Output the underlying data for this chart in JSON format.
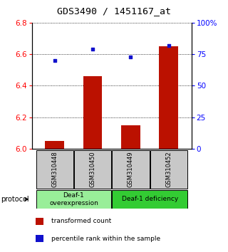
{
  "title": "GDS3490 / 1451167_at",
  "samples": [
    "GSM310448",
    "GSM310450",
    "GSM310449",
    "GSM310452"
  ],
  "transformed_counts": [
    6.05,
    6.46,
    6.15,
    6.65
  ],
  "percentile_ranks": [
    70,
    79,
    73,
    82
  ],
  "ylim_left": [
    6.0,
    6.8
  ],
  "ylim_right": [
    0,
    100
  ],
  "yticks_left": [
    6.0,
    6.2,
    6.4,
    6.6,
    6.8
  ],
  "yticks_right": [
    0,
    25,
    50,
    75,
    100
  ],
  "ytick_labels_right": [
    "0",
    "25",
    "50",
    "75",
    "100%"
  ],
  "bar_color": "#bb1100",
  "dot_color": "#1111cc",
  "bar_width": 0.5,
  "groups": [
    {
      "label": "Deaf-1\noverexpression",
      "samples": [
        0,
        1
      ],
      "color": "#99ee99"
    },
    {
      "label": "Deaf-1 deficiency",
      "samples": [
        2,
        3
      ],
      "color": "#33cc33"
    }
  ],
  "protocol_label": "protocol",
  "legend_bar_label": "transformed count",
  "legend_dot_label": "percentile rank within the sample",
  "plot_bg_color": "#ffffff",
  "sample_box_color": "#c8c8c8",
  "title_fontsize": 9.5,
  "tick_fontsize": 7.5,
  "sample_fontsize": 6,
  "group_fontsize": 6.5,
  "legend_fontsize": 6.5
}
